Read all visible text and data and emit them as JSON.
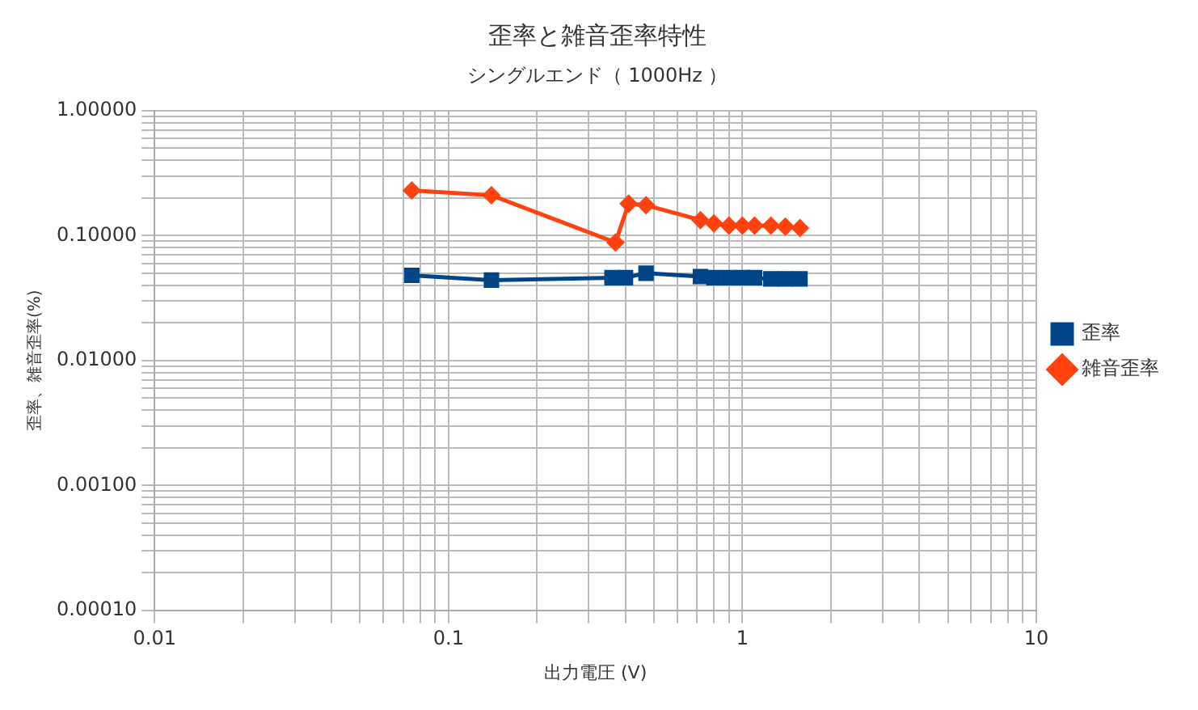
{
  "chart_data": {
    "type": "line",
    "title": "歪率と雑音歪率特性",
    "subtitle": "シングルエンド（ 1000Hz ）",
    "xlabel": "出力電圧 (V)",
    "ylabel": "歪率、雑音歪率(%)",
    "log": "xy",
    "grid": true,
    "legend": "right",
    "xlim": [
      0.01,
      10
    ],
    "ylim": [
      0.0001,
      1
    ],
    "xticks": [
      0.01,
      {
        "value": 0.02,
        "label": null
      },
      {
        "value": 0.03,
        "label": null
      },
      {
        "value": 0.04,
        "label": null
      },
      {
        "value": 0.05,
        "label": null
      },
      {
        "value": 0.06,
        "label": null
      },
      {
        "value": 0.07,
        "label": null
      },
      {
        "value": 0.08,
        "label": null
      },
      {
        "value": 0.09,
        "label": null
      },
      0.1,
      {
        "value": 0.2,
        "label": null
      },
      {
        "value": 0.3,
        "label": null
      },
      {
        "value": 0.4,
        "label": null
      },
      {
        "value": 0.5,
        "label": null
      },
      {
        "value": 0.6,
        "label": null
      },
      {
        "value": 0.7,
        "label": null
      },
      {
        "value": 0.8,
        "label": null
      },
      {
        "value": 0.9,
        "label": null
      },
      1,
      {
        "value": 2,
        "label": null
      },
      {
        "value": 3,
        "label": null
      },
      {
        "value": 4,
        "label": null
      },
      {
        "value": 5,
        "label": null
      },
      {
        "value": 6,
        "label": null
      },
      {
        "value": 7,
        "label": null
      },
      {
        "value": 8,
        "label": null
      },
      {
        "value": 9,
        "label": null
      },
      10
    ],
    "yticks": [
      {
        "value": 0.0001,
        "label": "0.00010"
      },
      {
        "value": 0.0002,
        "label": null
      },
      {
        "value": 0.0003,
        "label": null
      },
      {
        "value": 0.0004,
        "label": null
      },
      {
        "value": 0.0005,
        "label": null
      },
      {
        "value": 0.0006,
        "label": null
      },
      {
        "value": 0.0007,
        "label": null
      },
      {
        "value": 0.0008,
        "label": null
      },
      {
        "value": 0.0009,
        "label": null
      },
      {
        "value": 0.001,
        "label": "0.00100"
      },
      {
        "value": 0.002,
        "label": null
      },
      {
        "value": 0.003,
        "label": null
      },
      {
        "value": 0.004,
        "label": null
      },
      {
        "value": 0.005,
        "label": null
      },
      {
        "value": 0.006,
        "label": null
      },
      {
        "value": 0.007,
        "label": null
      },
      {
        "value": 0.008,
        "label": null
      },
      {
        "value": 0.009,
        "label": null
      },
      {
        "value": 0.01,
        "label": "0.01000"
      },
      {
        "value": 0.02,
        "label": null
      },
      {
        "value": 0.03,
        "label": null
      },
      {
        "value": 0.04,
        "label": null
      },
      {
        "value": 0.05,
        "label": null
      },
      {
        "value": 0.06,
        "label": null
      },
      {
        "value": 0.07,
        "label": null
      },
      {
        "value": 0.08,
        "label": null
      },
      {
        "value": 0.09,
        "label": null
      },
      {
        "value": 0.1,
        "label": "0.10000"
      },
      {
        "value": 0.2,
        "label": null
      },
      {
        "value": 0.3,
        "label": null
      },
      {
        "value": 0.4,
        "label": null
      },
      {
        "value": 0.5,
        "label": null
      },
      {
        "value": 0.6,
        "label": null
      },
      {
        "value": 0.7,
        "label": null
      },
      {
        "value": 0.8,
        "label": null
      },
      {
        "value": 0.9,
        "label": null
      },
      {
        "value": 1,
        "label": "1.00000"
      }
    ],
    "series": [
      {
        "name": "歪率",
        "color": "#004586",
        "marker": "square",
        "x": [
          0.075,
          0.14,
          0.36,
          0.4,
          0.47,
          0.72,
          0.8,
          0.9,
          1.0,
          1.1,
          1.25,
          1.4,
          1.57
        ],
        "values": [
          0.048,
          0.044,
          0.046,
          0.046,
          0.05,
          0.047,
          0.046,
          0.046,
          0.046,
          0.046,
          0.045,
          0.045,
          0.045
        ]
      },
      {
        "name": "雑音歪率",
        "color": "#ff420e",
        "marker": "diamond",
        "x": [
          0.075,
          0.14,
          0.37,
          0.41,
          0.47,
          0.72,
          0.8,
          0.9,
          1.0,
          1.1,
          1.25,
          1.4,
          1.57
        ],
        "values": [
          0.23,
          0.21,
          0.088,
          0.18,
          0.175,
          0.133,
          0.125,
          0.12,
          0.12,
          0.12,
          0.12,
          0.118,
          0.115
        ]
      }
    ]
  }
}
